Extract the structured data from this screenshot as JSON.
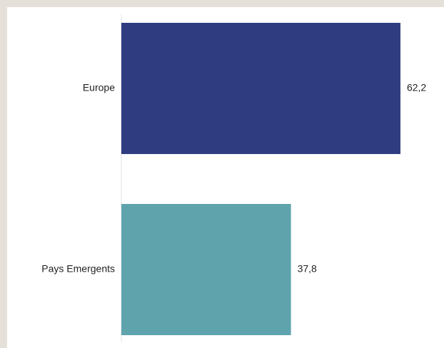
{
  "chart_data": {
    "type": "bar",
    "orientation": "horizontal",
    "categories": [
      "Europe",
      "Pays Emergents"
    ],
    "values": [
      62.2,
      37.8
    ],
    "value_labels": [
      "62,2",
      "37,8"
    ],
    "colors": [
      "#2f3d80",
      "#5fa3ad"
    ],
    "xlim": [
      0,
      70
    ],
    "grid": false,
    "legend": "none",
    "title": "",
    "xlabel": "",
    "ylabel": ""
  }
}
